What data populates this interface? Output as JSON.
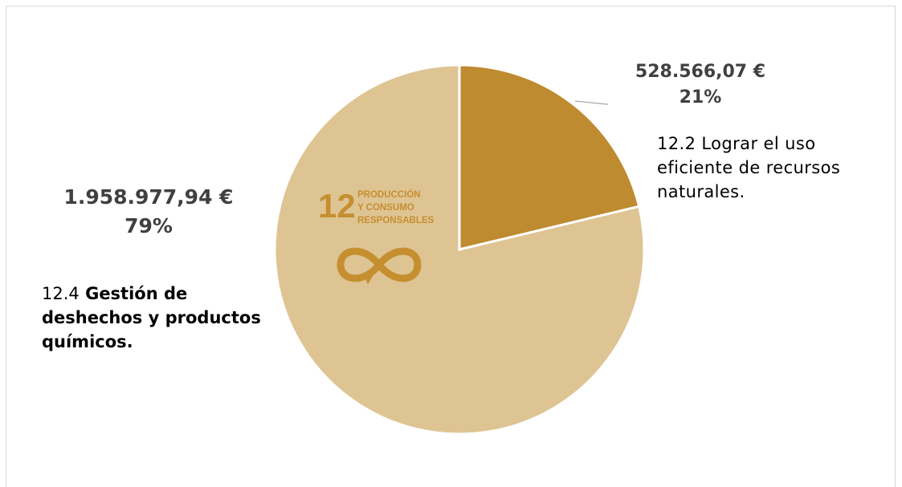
{
  "chart_data": {
    "type": "pie",
    "title": "",
    "slices": [
      {
        "value": 528566.07,
        "amount_label": "528.566,07 €",
        "percent_label": "21%",
        "description": "12.2 Lograr el uso eficiente de recursos naturales.",
        "color": "#bf8b30"
      },
      {
        "value": 1958977.94,
        "amount_label": "1.958.977,94 €",
        "percent_label": "79%",
        "description_number": "12.4",
        "description": "Gestión de deshechos y productos químicos.",
        "color": "#dfc493"
      }
    ],
    "legend": "none"
  },
  "logo": {
    "number": "12",
    "line1": "PRODUCCIÓN",
    "line2": "Y CONSUMO",
    "line3": "RESPONSABLES",
    "icon": "infinity-arrow-icon",
    "color": "#c58f30"
  }
}
